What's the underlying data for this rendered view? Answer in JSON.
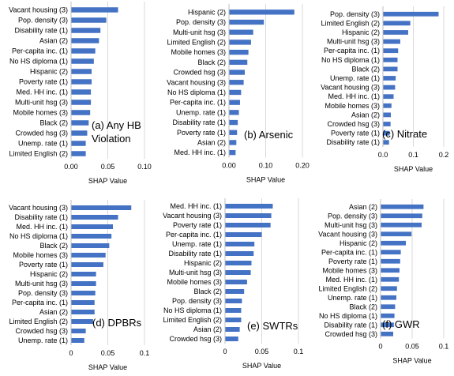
{
  "chart_data": [
    {
      "type": "bar",
      "orientation": "horizontal",
      "panel_label": [
        "(a) Any HB",
        "Violation"
      ],
      "categories": [
        "Vacant housing (3)",
        "Pop. density (3)",
        "Disability rate (1)",
        "Asian (2)",
        "Per-capita inc. (1)",
        "No HS diploma (1)",
        "Hispanic (2)",
        "Poverty rate (1)",
        "Med. HH inc. (1)",
        "Multi-unit hsg (3)",
        "Mobile homes (3)",
        "Black (2)",
        "Crowded hsg (3)",
        "Unemp. rate (1)",
        "Limited English (2)"
      ],
      "values": [
        0.064,
        0.048,
        0.04,
        0.038,
        0.033,
        0.031,
        0.028,
        0.028,
        0.027,
        0.027,
        0.026,
        0.024,
        0.022,
        0.02,
        0.02
      ],
      "xlim": [
        0,
        0.1
      ],
      "xticks": [
        "0.00",
        "0.05",
        "0.10"
      ],
      "tick_values": [
        0,
        0.05,
        0.1
      ],
      "xlabel": "SHAP Value",
      "color": "#4472c4",
      "grid": "vertical"
    },
    {
      "type": "bar",
      "orientation": "horizontal",
      "panel_label": [
        "(b) Arsenic"
      ],
      "categories": [
        "Hispanic (2)",
        "Pop. density (3)",
        "Multi-unit hsg (3)",
        "Limited English (2)",
        "Mobile homes (3)",
        "Black (2)",
        "Crowded hsg (3)",
        "Vacant housing (3)",
        "No HS diploma (1)",
        "Per-capita inc. (1)",
        "Unemp. rate (1)",
        "Disability rate (1)",
        "Poverty rate (1)",
        "Asian (2)",
        "Med. HH inc. (1)"
      ],
      "values": [
        0.178,
        0.095,
        0.066,
        0.06,
        0.053,
        0.05,
        0.043,
        0.04,
        0.033,
        0.03,
        0.027,
        0.024,
        0.022,
        0.02,
        0.018
      ],
      "xlim": [
        0,
        0.2
      ],
      "xticks": [
        "0.00",
        "0.10",
        "0.20"
      ],
      "tick_values": [
        0,
        0.1,
        0.2
      ],
      "xlabel": "SHAP Value",
      "color": "#4472c4",
      "grid": "vertical"
    },
    {
      "type": "bar",
      "orientation": "horizontal",
      "panel_label": [
        "(c) Nitrate"
      ],
      "categories": [
        "Pop. density (3)",
        "Limited English (2)",
        "Hispanic (2)",
        "Multi-unit hsg (3)",
        "Per-capita inc. (1)",
        "No HS diploma (1)",
        "Black (2)",
        "Unemp. rate (1)",
        "Vacant housing (3)",
        "Med. HH inc. (1)",
        "Mobile homes (3)",
        "Asian (2)",
        "Crowded hsg (3)",
        "Poverty rate (1)",
        "Disability rate (1)"
      ],
      "values": [
        0.183,
        0.09,
        0.083,
        0.057,
        0.05,
        0.048,
        0.048,
        0.042,
        0.04,
        0.035,
        0.028,
        0.026,
        0.025,
        0.022,
        0.02
      ],
      "xlim": [
        0,
        0.2
      ],
      "xticks": [
        "0.0",
        "0.1",
        "0.2"
      ],
      "tick_values": [
        0,
        0.1,
        0.2
      ],
      "xlabel": "SHAP Value",
      "color": "#4472c4",
      "grid": "vertical"
    },
    {
      "type": "bar",
      "orientation": "horizontal",
      "panel_label": [
        "(d) DPBRs"
      ],
      "categories": [
        "Vacant housing (3)",
        "Disability rate (1)",
        "Med. HH inc. (1)",
        "No HS diploma (1)",
        "Black (2)",
        "Mobile homes (3)",
        "Poverty rate (1)",
        "Hispanic (2)",
        "Multi-unit hsg (3)",
        "Pop. density (3)",
        "Per-capita inc. (1)",
        "Asian (2)",
        "Limited English (2)",
        "Crowded hsg (3)",
        "Unemp. rate (1)"
      ],
      "values": [
        0.082,
        0.064,
        0.057,
        0.055,
        0.052,
        0.047,
        0.044,
        0.034,
        0.034,
        0.033,
        0.032,
        0.032,
        0.03,
        0.02,
        0.018
      ],
      "xlim": [
        0,
        0.1
      ],
      "xticks": [
        "0",
        "0.05",
        "0.1"
      ],
      "tick_values": [
        0,
        0.05,
        0.1
      ],
      "xlabel": "SHAP Value",
      "color": "#4472c4",
      "grid": "vertical"
    },
    {
      "type": "bar",
      "orientation": "horizontal",
      "panel_label": [
        "(e) SWTRs"
      ],
      "categories": [
        "Med. HH inc. (1)",
        "Vacant housing (3)",
        "Poverty rate (1)",
        "Per-capita inc. (1)",
        "Unemp. rate (1)",
        "Disability rate (1)",
        "Hispanic (2)",
        "Multi-unit hsg (3)",
        "Mobile homes (3)",
        "Black (2)",
        "Pop. density (3)",
        "No HS diploma (1)",
        "Limited English (2)",
        "Asian (2)",
        "Crowded hsg (3)"
      ],
      "values": [
        0.065,
        0.063,
        0.062,
        0.05,
        0.04,
        0.039,
        0.036,
        0.035,
        0.03,
        0.026,
        0.023,
        0.022,
        0.022,
        0.02,
        0.018
      ],
      "xlim": [
        0,
        0.1
      ],
      "xticks": [
        "0",
        "0.05",
        "0.1"
      ],
      "tick_values": [
        0,
        0.05,
        0.1
      ],
      "xlabel": "SHAP Value",
      "color": "#4472c4",
      "grid": "vertical"
    },
    {
      "type": "bar",
      "orientation": "horizontal",
      "panel_label": [
        "(f) GWR"
      ],
      "categories": [
        "Asian (2)",
        "Pop. density (3)",
        "Multi-unit hsg (3)",
        "Vacant housing (3)",
        "Hispanic (2)",
        "Per-capita inc. (1)",
        "Poverty rate (1)",
        "Mobile homes (3)",
        "Med. HH inc. (1)",
        "Limited English (2)",
        "Unemp. rate (1)",
        "Black (2)",
        "No HS diploma (1)",
        "Disability rate (1)",
        "Crowded hsg (3)"
      ],
      "values": [
        0.068,
        0.066,
        0.065,
        0.049,
        0.04,
        0.032,
        0.031,
        0.03,
        0.029,
        0.026,
        0.025,
        0.023,
        0.022,
        0.021,
        0.02
      ],
      "xlim": [
        0,
        0.1
      ],
      "xticks": [
        "0",
        "0.05",
        "0.1"
      ],
      "tick_values": [
        0,
        0.05,
        0.1
      ],
      "xlabel": "SHAP Value",
      "color": "#4472c4",
      "grid": "vertical"
    }
  ]
}
